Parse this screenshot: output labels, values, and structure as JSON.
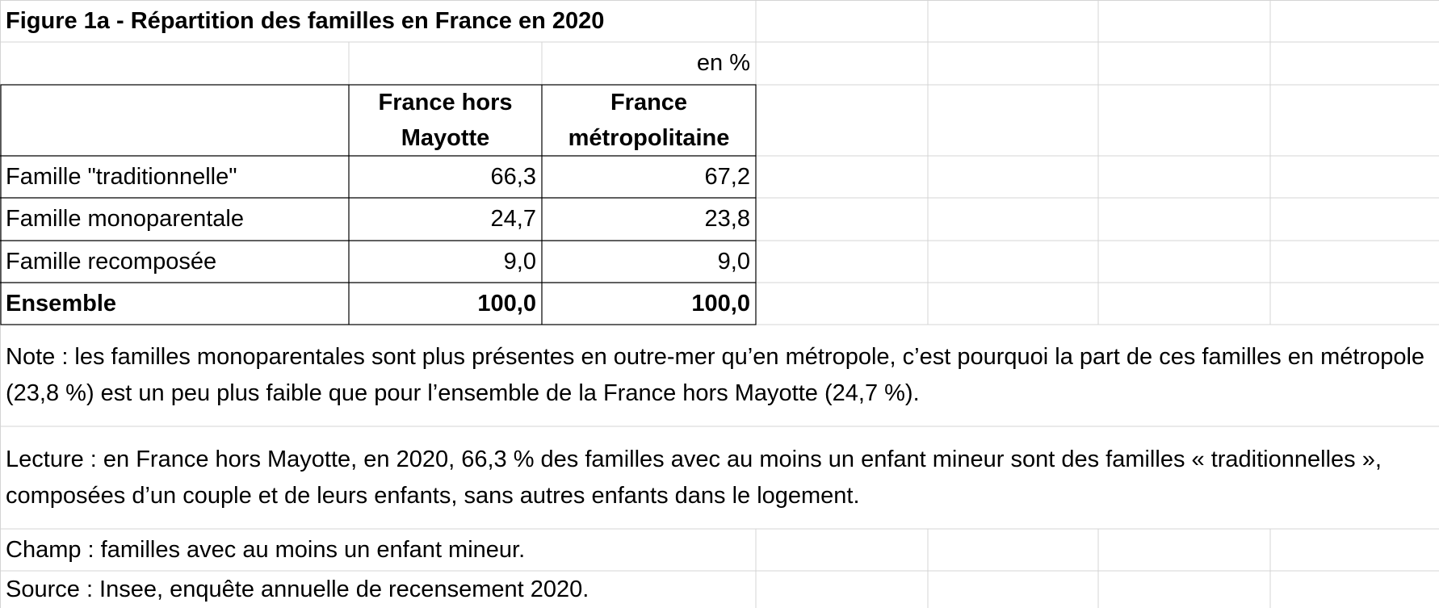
{
  "title": "Figure 1a - Répartition des familles en France en 2020",
  "unit": "en %",
  "table": {
    "columns": [
      "France hors Mayotte",
      "France métropolitaine"
    ],
    "rows": [
      [
        "Famille \"traditionnelle\"",
        "66,3",
        "67,2"
      ],
      [
        "Famille monoparentale",
        "24,7",
        "23,8"
      ],
      [
        "Famille recomposée",
        "9,0",
        "9,0"
      ],
      [
        "Ensemble",
        "100,0",
        "100,0"
      ]
    ]
  },
  "note": "Note : les familles monoparentales sont plus présentes en outre-mer qu’en métropole, c’est pourquoi la part de ces familles en métropole (23,8 %) est un peu plus faible que pour l’ensemble de la France hors Mayotte (24,7 %).",
  "lecture": "Lecture : en France hors Mayotte, en 2020, 66,3 % des familles avec au moins un enfant mineur sont des familles « traditionnelles », composées d’un couple et de leurs enfants, sans autres enfants dans le logement.",
  "champ": "Champ : familles avec au moins un enfant mineur.",
  "source": "Source : Insee, enquête annuelle de recensement 2020."
}
